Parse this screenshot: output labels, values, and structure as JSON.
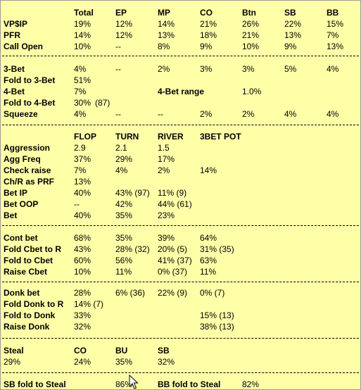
{
  "section1": {
    "header": [
      "Total",
      "EP",
      "MP",
      "CO",
      "Btn",
      "SB",
      "BB"
    ],
    "rows": [
      {
        "label": "VP$IP",
        "cells": [
          "19%",
          "12%",
          "14%",
          "21%",
          "26%",
          "22%",
          "15%"
        ]
      },
      {
        "label": "PFR",
        "cells": [
          "14%",
          "12%",
          "13%",
          "18%",
          "21%",
          "13%",
          "7%"
        ]
      },
      {
        "label": "Call Open",
        "cells": [
          "10%",
          "--",
          "8%",
          "9%",
          "10%",
          "9%",
          "13%"
        ]
      }
    ]
  },
  "section2": {
    "three_bet": {
      "label": "3-Bet",
      "cells": [
        "4%",
        "--",
        "2%",
        "3%",
        "3%",
        "5%",
        "4%"
      ]
    },
    "fold_to_3bet": {
      "label": "Fold to 3-Bet",
      "value": "51%"
    },
    "four_bet": {
      "label": "4-Bet",
      "value": "7%",
      "range_label": "4-Bet range",
      "range_value": "1.0%"
    },
    "fold_to_4bet": {
      "label": "Fold to 4-Bet",
      "value": "30%",
      "sample": "(87)"
    },
    "squeeze": {
      "label": "Squeeze",
      "cells": [
        "4%",
        "--",
        "--",
        "2%",
        "2%",
        "4%",
        "4%"
      ]
    }
  },
  "section3": {
    "header": [
      "FLOP",
      "TURN",
      "RIVER",
      "3BET POT"
    ],
    "rows": [
      {
        "label": "Aggression",
        "cells": [
          "2.9",
          "2.1",
          "1.5",
          ""
        ]
      },
      {
        "label": "Agg Freq",
        "cells": [
          "37%",
          "29%",
          "17%",
          ""
        ]
      },
      {
        "label": "Check raise",
        "cells": [
          "7%",
          "4%",
          "2%",
          "14%"
        ]
      },
      {
        "label": "Ch/R as PRF",
        "cells": [
          "13%",
          "",
          "",
          ""
        ]
      },
      {
        "label": "Bet IP",
        "cells": [
          "40%",
          "43% (97)",
          "11% (9)",
          ""
        ]
      },
      {
        "label": "Bet OOP",
        "cells": [
          "--",
          "42%",
          "44% (61)",
          ""
        ]
      },
      {
        "label": "Bet",
        "cells": [
          "40%",
          "35%",
          "23%",
          ""
        ]
      }
    ]
  },
  "section4": {
    "rows": [
      {
        "label": "Cont bet",
        "cells": [
          "68%",
          "35%",
          "39%",
          "64%"
        ]
      },
      {
        "label": "Fold Cbet to R",
        "cells": [
          "43%",
          "28%  (32)",
          "20%  (5)",
          "31%  (35)"
        ]
      },
      {
        "label": "Fold to Cbet",
        "cells": [
          "60%",
          "56%",
          "41%  (37)",
          "63%"
        ]
      },
      {
        "label": "Raise Cbet",
        "cells": [
          "10%",
          "11%",
          "0%  (37)",
          "11%"
        ]
      }
    ]
  },
  "section5": {
    "rows": [
      {
        "label": "Donk bet",
        "cells": [
          "28%",
          "6%  (36)",
          "22%  (9)",
          "0%  (7)"
        ]
      },
      {
        "label": "Fold Donk to R",
        "cells": [
          "14%  (7)",
          "",
          "",
          ""
        ]
      },
      {
        "label": "Fold to Donk",
        "cells": [
          "33%",
          "",
          "",
          "15%  (13)"
        ]
      },
      {
        "label": "Raise Donk",
        "cells": [
          "32%",
          "",
          "",
          "38%  (13)"
        ]
      }
    ]
  },
  "section6": {
    "header": [
      "Steal",
      "CO",
      "BU",
      "SB"
    ],
    "values": [
      "29%",
      "24%",
      "35%",
      "32%"
    ]
  },
  "section7": {
    "sb_label": "SB fold to Steal",
    "sb_value": "86%",
    "bb_label": "BB fold to  Steal",
    "bb_value": "82%"
  },
  "icons": {
    "cursor": "mouse-pointer-icon"
  },
  "colors": {
    "background": "#ffffa8",
    "text": "#000000",
    "separator": "#000000"
  }
}
